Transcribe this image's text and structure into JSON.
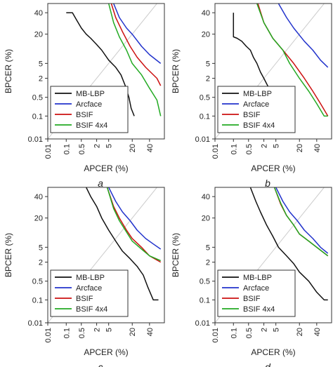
{
  "colors": {
    "MB-LBP": "#111111",
    "Arcface": "#2233cc",
    "BSIF": "#cc1111",
    "BSIF 4x4": "#22aa22",
    "diagonal": "#cccccc",
    "frame": "#333333"
  },
  "chart_data": [
    {
      "type": "line",
      "panel_label": "a",
      "xlabel": "APCER (%)",
      "ylabel": "BPCER (%)",
      "xscale": "probit",
      "yscale": "probit",
      "xlim": [
        0.01,
        60
      ],
      "ylim": [
        0.01,
        50
      ],
      "xticks": [
        "0.01",
        "0.1",
        "0.5",
        "2",
        "5",
        "20",
        "40"
      ],
      "yticks": [
        "0.01",
        "0.1",
        "0.5",
        "2",
        "5",
        "20",
        "40"
      ],
      "grid": false,
      "diagonal": true,
      "legend_position": "bottom-left",
      "series": [
        {
          "name": "MB-LBP",
          "x": [
            0.1,
            0.2,
            0.3,
            0.5,
            0.8,
            1.2,
            2,
            3,
            5,
            8,
            11,
            14,
            17,
            19,
            22
          ],
          "y": [
            40,
            40,
            33,
            25,
            20,
            17,
            13,
            10,
            6,
            4,
            2.5,
            1.2,
            0.5,
            0.2,
            0.1
          ]
        },
        {
          "name": "Arcface",
          "x": [
            7,
            10,
            15,
            20,
            30,
            40,
            55
          ],
          "y": [
            50,
            35,
            25,
            20,
            12,
            8,
            5
          ]
        },
        {
          "name": "BSIF",
          "x": [
            6,
            8,
            12,
            18,
            25,
            35,
            50,
            55
          ],
          "y": [
            50,
            35,
            22,
            12,
            7,
            4,
            2,
            1.2
          ]
        },
        {
          "name": "BSIF 4x4",
          "x": [
            5,
            7,
            10,
            15,
            20,
            30,
            40,
            50,
            55
          ],
          "y": [
            50,
            30,
            18,
            10,
            5,
            2.5,
            1,
            0.4,
            0.1
          ]
        }
      ]
    },
    {
      "type": "line",
      "panel_label": "b",
      "xlabel": "APCER (%)",
      "ylabel": "BPCER (%)",
      "xscale": "probit",
      "yscale": "probit",
      "xlim": [
        0.01,
        60
      ],
      "ylim": [
        0.01,
        50
      ],
      "xticks": [
        "0.01",
        "0.1",
        "0.5",
        "2",
        "5",
        "20",
        "40"
      ],
      "yticks": [
        "0.01",
        "0.1",
        "0.5",
        "2",
        "5",
        "20",
        "40"
      ],
      "grid": false,
      "diagonal": true,
      "legend_position": "bottom-left",
      "series": [
        {
          "name": "MB-LBP",
          "x": [
            0.1,
            0.1,
            0.15,
            0.25,
            0.4,
            0.6,
            0.8,
            1.1,
            1.5,
            2,
            3,
            4,
            5,
            6,
            8,
            15
          ],
          "y": [
            40,
            18,
            17,
            15,
            12,
            10,
            7,
            5,
            3,
            2,
            1,
            0.5,
            0.2,
            0.1,
            0.1,
            0.1
          ]
        },
        {
          "name": "Arcface",
          "x": [
            6,
            10,
            15,
            25,
            35,
            45,
            55
          ],
          "y": [
            50,
            35,
            25,
            15,
            10,
            6,
            4
          ]
        },
        {
          "name": "BSIF",
          "x": [
            1.2,
            2,
            4,
            8,
            15,
            25,
            35,
            45,
            55
          ],
          "y": [
            50,
            30,
            17,
            10,
            5,
            2,
            0.8,
            0.3,
            0.1
          ]
        },
        {
          "name": "BSIF 4x4",
          "x": [
            1.1,
            2,
            4,
            8,
            12,
            20,
            30,
            40,
            50,
            55
          ],
          "y": [
            50,
            30,
            17,
            10,
            5,
            2,
            0.8,
            0.3,
            0.1,
            0.1
          ]
        }
      ]
    },
    {
      "type": "line",
      "panel_label": "c",
      "xlabel": "APCER (%)",
      "ylabel": "BPCER (%)",
      "xscale": "probit",
      "yscale": "probit",
      "xlim": [
        0.01,
        60
      ],
      "ylim": [
        0.01,
        50
      ],
      "xticks": [
        "0.01",
        "0.1",
        "0.5",
        "2",
        "5",
        "20",
        "40"
      ],
      "yticks": [
        "0.01",
        "0.1",
        "0.5",
        "2",
        "5",
        "20",
        "40"
      ],
      "grid": false,
      "diagonal": true,
      "legend_position": "bottom-left",
      "series": [
        {
          "name": "MB-LBP",
          "x": [
            0.8,
            1.2,
            2,
            3,
            5,
            8,
            12,
            18,
            25,
            32,
            38,
            45,
            52
          ],
          "y": [
            50,
            40,
            30,
            20,
            12,
            7,
            4,
            2.5,
            1.5,
            0.8,
            0.3,
            0.1,
            0.1
          ]
        },
        {
          "name": "Arcface",
          "x": [
            5,
            8,
            12,
            18,
            25,
            35,
            45,
            55
          ],
          "y": [
            50,
            35,
            25,
            18,
            12,
            8,
            6,
            4.5
          ]
        },
        {
          "name": "BSIF",
          "x": [
            4.5,
            7,
            10,
            15,
            20,
            30,
            40,
            55
          ],
          "y": [
            50,
            30,
            20,
            12,
            8,
            5,
            3,
            2
          ]
        },
        {
          "name": "BSIF 4x4",
          "x": [
            4.5,
            7,
            10,
            15,
            20,
            30,
            40,
            55
          ],
          "y": [
            50,
            28,
            18,
            11,
            7,
            4.5,
            3,
            2.2
          ]
        }
      ]
    },
    {
      "type": "line",
      "panel_label": "d",
      "xlabel": "APCER (%)",
      "ylabel": "BPCER (%)",
      "xscale": "probit",
      "yscale": "probit",
      "xlim": [
        0.01,
        60
      ],
      "ylim": [
        0.01,
        50
      ],
      "xticks": [
        "0.01",
        "0.1",
        "0.5",
        "2",
        "5",
        "20",
        "40"
      ],
      "yticks": [
        "0.01",
        "0.1",
        "0.5",
        "2",
        "5",
        "20",
        "40"
      ],
      "grid": false,
      "diagonal": true,
      "legend_position": "bottom-left",
      "series": [
        {
          "name": "MB-LBP",
          "x": [
            0.6,
            1,
            1.5,
            2.5,
            4,
            6,
            10,
            15,
            20,
            30,
            40,
            50,
            55
          ],
          "y": [
            50,
            35,
            25,
            15,
            9,
            5,
            3,
            1.8,
            1,
            0.5,
            0.2,
            0.1,
            0.1
          ]
        },
        {
          "name": "Arcface",
          "x": [
            5,
            8,
            12,
            18,
            25,
            35,
            45,
            55
          ],
          "y": [
            50,
            35,
            25,
            18,
            12,
            8,
            5,
            3.5
          ]
        },
        {
          "name": "BSIF",
          "x": [
            4.5,
            7,
            10,
            15,
            20,
            30,
            40,
            55
          ],
          "y": [
            50,
            32,
            22,
            15,
            10,
            7,
            5,
            3
          ]
        },
        {
          "name": "BSIF 4x4",
          "x": [
            4.5,
            7,
            10,
            15,
            20,
            30,
            40,
            55
          ],
          "y": [
            50,
            33,
            22,
            15,
            10,
            7,
            5,
            3
          ]
        }
      ]
    }
  ]
}
